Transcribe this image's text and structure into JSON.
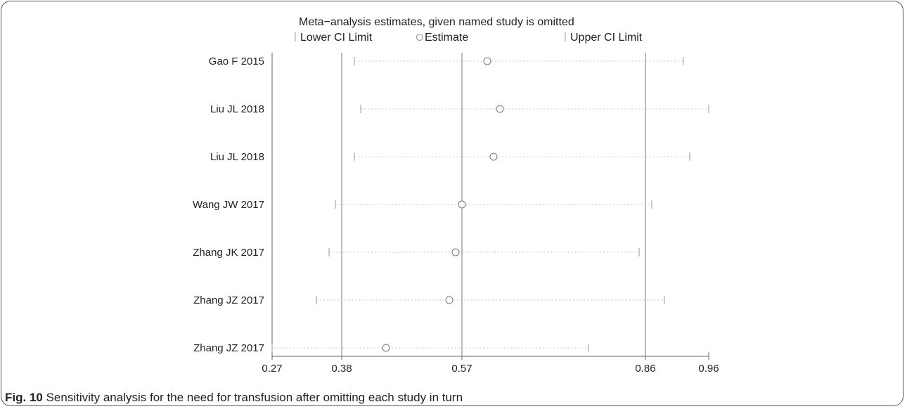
{
  "chart_data": {
    "type": "scatter",
    "title": "Meta−analysis estimates, given named study is omitted",
    "legend": {
      "lower": "Lower CI Limit",
      "estimate": "Estimate",
      "upper": "Upper CI Limit",
      "placement": "top"
    },
    "x_ticks": [
      "0.27",
      "0.38",
      "0.57",
      "0.86",
      "0.96"
    ],
    "x_tick_values": [
      0.27,
      0.38,
      0.57,
      0.86,
      0.96
    ],
    "reference_lines": [
      0.38,
      0.57,
      0.86
    ],
    "xlim": [
      0.27,
      0.96
    ],
    "studies": [
      {
        "name": "Gao F 2015",
        "lower": 0.4,
        "estimate": 0.61,
        "upper": 0.92
      },
      {
        "name": "Liu JL 2018",
        "lower": 0.41,
        "estimate": 0.63,
        "upper": 0.96
      },
      {
        "name": "Liu JL 2018",
        "lower": 0.4,
        "estimate": 0.62,
        "upper": 0.93
      },
      {
        "name": "Wang JW 2017",
        "lower": 0.37,
        "estimate": 0.57,
        "upper": 0.87
      },
      {
        "name": "Zhang JK 2017",
        "lower": 0.36,
        "estimate": 0.56,
        "upper": 0.85
      },
      {
        "name": "Zhang JZ 2017",
        "lower": 0.34,
        "estimate": 0.55,
        "upper": 0.89
      },
      {
        "name": "Zhang JZ 2017",
        "lower": 0.27,
        "estimate": 0.45,
        "upper": 0.77
      }
    ]
  },
  "caption": {
    "label": "Fig. 10",
    "text": " Sensitivity analysis for the need for transfusion after omitting each study in turn"
  }
}
